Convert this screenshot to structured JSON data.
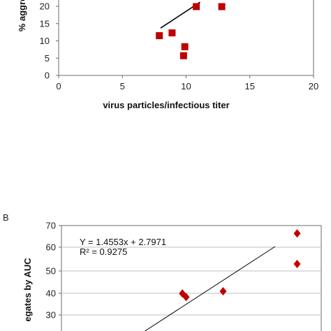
{
  "chart_data": [
    {
      "type": "scatter",
      "panel": "",
      "xlabel": "virus particles/infectious titer",
      "ylabel": "% aggre",
      "xlim": [
        0,
        20
      ],
      "ylim": [
        0,
        20
      ],
      "x_ticks": [
        "0",
        "5",
        "10",
        "15",
        "20"
      ],
      "y_ticks": [
        "0",
        "5",
        "10",
        "15",
        "20"
      ],
      "series": [
        {
          "points": [
            {
              "x": 7.9,
              "y": 11.5
            },
            {
              "x": 8.9,
              "y": 12.3
            },
            {
              "x": 9.9,
              "y": 8.3
            },
            {
              "x": 9.8,
              "y": 5.7
            },
            {
              "x": 10.8,
              "y": 19.9
            },
            {
              "x": 12.8,
              "y": 19.9
            }
          ],
          "marker": "square",
          "color": "#c00000"
        }
      ],
      "trendline": {
        "x": [
          8.0,
          11.1
        ],
        "y": [
          13.7,
          21.2
        ],
        "color": "#000000"
      }
    },
    {
      "type": "scatter",
      "panel": "B",
      "xlabel": "",
      "ylabel": "egates by AUC",
      "ylim": [
        30,
        70
      ],
      "y_ticks": [
        "70",
        "60",
        "50",
        "40",
        "30"
      ],
      "series": [
        {
          "points": [
            {
              "x": 4.9,
              "y": 39.6
            },
            {
              "x": 5.0,
              "y": 38.0
            },
            {
              "x": 6.0,
              "y": 40.6
            },
            {
              "x": 8.0,
              "y": 66.5
            },
            {
              "x": 8.0,
              "y": 52.8
            }
          ],
          "marker": "diamond",
          "color": "#c00000"
        }
      ],
      "trendline": {
        "equation": "Y = 1.4553x + 2.7971",
        "r2": "R² = 0.9275",
        "color": "#000000"
      }
    }
  ]
}
